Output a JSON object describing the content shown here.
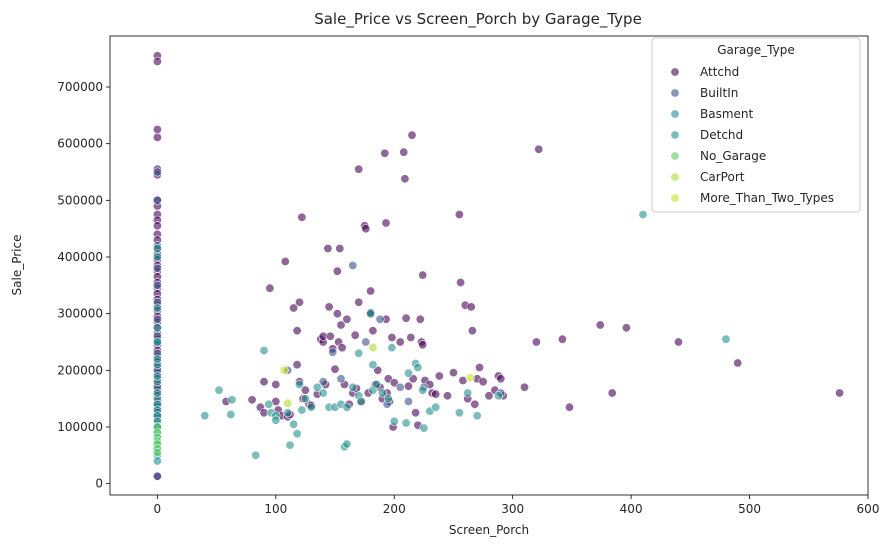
{
  "chart_data": {
    "type": "scatter",
    "title": "Sale_Price vs Screen_Porch by Garage_Type",
    "xlabel": "Screen_Porch",
    "ylabel": "Sale_Price",
    "xlim": [
      -40,
      600
    ],
    "ylim": [
      -20000,
      790000
    ],
    "xticks": [
      0,
      100,
      200,
      300,
      400,
      500,
      600
    ],
    "yticks": [
      0,
      100000,
      200000,
      300000,
      400000,
      500000,
      600000,
      700000
    ],
    "xtick_labels": [
      "0",
      "100",
      "200",
      "300",
      "400",
      "500",
      "600"
    ],
    "ytick_labels": [
      "0",
      "100000",
      "200000",
      "300000",
      "400000",
      "500000",
      "600000",
      "700000"
    ],
    "grid": false,
    "legend": {
      "title": "Garage_Type",
      "placement": "top-right"
    },
    "series": [
      {
        "name": "Attchd",
        "color": "#440154",
        "points": [
          [
            0,
            755000
          ],
          [
            0,
            745000
          ],
          [
            0,
            625000
          ],
          [
            0,
            611000
          ],
          [
            0,
            555000
          ],
          [
            0,
            545000
          ],
          [
            0,
            500000
          ],
          [
            0,
            490000
          ],
          [
            0,
            475000
          ],
          [
            0,
            465000
          ],
          [
            0,
            455000
          ],
          [
            0,
            440000
          ],
          [
            0,
            430000
          ],
          [
            0,
            415000
          ],
          [
            0,
            405000
          ],
          [
            0,
            395000
          ],
          [
            0,
            385000
          ],
          [
            0,
            375000
          ],
          [
            0,
            365000
          ],
          [
            0,
            355000
          ],
          [
            0,
            345000
          ],
          [
            0,
            335000
          ],
          [
            0,
            325000
          ],
          [
            0,
            315000
          ],
          [
            0,
            305000
          ],
          [
            0,
            295000
          ],
          [
            0,
            285000
          ],
          [
            0,
            275000
          ],
          [
            0,
            265000
          ],
          [
            0,
            255000
          ],
          [
            0,
            245000
          ],
          [
            0,
            235000
          ],
          [
            0,
            225000
          ],
          [
            0,
            215000
          ],
          [
            0,
            205000
          ],
          [
            0,
            195000
          ],
          [
            0,
            185000
          ],
          [
            0,
            175000
          ],
          [
            0,
            165000
          ],
          [
            0,
            155000
          ],
          [
            0,
            145000
          ],
          [
            0,
            135000
          ],
          [
            0,
            125000
          ],
          [
            0,
            115000
          ],
          [
            0,
            13000
          ],
          [
            58,
            145000
          ],
          [
            80,
            148000
          ],
          [
            87,
            135000
          ],
          [
            90,
            180000
          ],
          [
            90,
            125000
          ],
          [
            95,
            345000
          ],
          [
            100,
            175000
          ],
          [
            100,
            145000
          ],
          [
            102,
            130000
          ],
          [
            105,
            120000
          ],
          [
            108,
            392000
          ],
          [
            110,
            118000
          ],
          [
            112,
            122000
          ],
          [
            115,
            310000
          ],
          [
            118,
            270000
          ],
          [
            118,
            210000
          ],
          [
            120,
            320000
          ],
          [
            120,
            180000
          ],
          [
            122,
            470000
          ],
          [
            123,
            150000
          ],
          [
            125,
            165000
          ],
          [
            128,
            140000
          ],
          [
            130,
            138000
          ],
          [
            135,
            158000
          ],
          [
            138,
            255000
          ],
          [
            140,
            250000
          ],
          [
            140,
            260000
          ],
          [
            142,
            175000
          ],
          [
            144,
            415000
          ],
          [
            145,
            312000
          ],
          [
            146,
            260000
          ],
          [
            148,
            238000
          ],
          [
            150,
            202000
          ],
          [
            152,
            375000
          ],
          [
            152,
            300000
          ],
          [
            153,
            250000
          ],
          [
            154,
            415000
          ],
          [
            155,
            280000
          ],
          [
            156,
            240000
          ],
          [
            158,
            175000
          ],
          [
            160,
            290000
          ],
          [
            162,
            140000
          ],
          [
            165,
            160000
          ],
          [
            167,
            262000
          ],
          [
            168,
            168000
          ],
          [
            170,
            555000
          ],
          [
            170,
            320000
          ],
          [
            172,
            145000
          ],
          [
            175,
            455000
          ],
          [
            176,
            450000
          ],
          [
            178,
            160000
          ],
          [
            180,
            340000
          ],
          [
            180,
            300000
          ],
          [
            182,
            270000
          ],
          [
            184,
            175000
          ],
          [
            186,
            200000
          ],
          [
            188,
            170000
          ],
          [
            190,
            150000
          ],
          [
            192,
            583000
          ],
          [
            193,
            460000
          ],
          [
            193,
            290000
          ],
          [
            194,
            160000
          ],
          [
            195,
            185000
          ],
          [
            196,
            145000
          ],
          [
            198,
            258000
          ],
          [
            199,
            100000
          ],
          [
            200,
            178000
          ],
          [
            205,
            250000
          ],
          [
            208,
            585000
          ],
          [
            209,
            538000
          ],
          [
            210,
            292000
          ],
          [
            212,
            172000
          ],
          [
            214,
            258000
          ],
          [
            215,
            615000
          ],
          [
            216,
            185000
          ],
          [
            218,
            125000
          ],
          [
            220,
            103000
          ],
          [
            222,
            290000
          ],
          [
            223,
            250000
          ],
          [
            224,
            368000
          ],
          [
            224,
            245000
          ],
          [
            226,
            182000
          ],
          [
            230,
            175000
          ],
          [
            232,
            160000
          ],
          [
            235,
            158000
          ],
          [
            238,
            190000
          ],
          [
            245,
            155000
          ],
          [
            250,
            196000
          ],
          [
            255,
            475000
          ],
          [
            256,
            355000
          ],
          [
            258,
            182000
          ],
          [
            260,
            315000
          ],
          [
            262,
            150000
          ],
          [
            265,
            312000
          ],
          [
            266,
            270000
          ],
          [
            268,
            140000
          ],
          [
            270,
            185000
          ],
          [
            272,
            205000
          ],
          [
            275,
            180000
          ],
          [
            280,
            155000
          ],
          [
            285,
            165000
          ],
          [
            288,
            190000
          ],
          [
            290,
            185000
          ],
          [
            292,
            155000
          ],
          [
            310,
            170000
          ],
          [
            320,
            250000
          ],
          [
            322,
            590000
          ],
          [
            342,
            255000
          ],
          [
            348,
            135000
          ],
          [
            374,
            280000
          ],
          [
            384,
            160000
          ],
          [
            396,
            275000
          ],
          [
            440,
            250000
          ],
          [
            490,
            213000
          ],
          [
            576,
            160000
          ]
        ]
      },
      {
        "name": "BuiltIn",
        "color": "#3b528b",
        "points": [
          [
            0,
            550000
          ],
          [
            0,
            500000
          ],
          [
            0,
            420000
          ],
          [
            0,
            380000
          ],
          [
            0,
            350000
          ],
          [
            0,
            320000
          ],
          [
            0,
            290000
          ],
          [
            0,
            260000
          ],
          [
            0,
            230000
          ],
          [
            0,
            200000
          ],
          [
            0,
            170000
          ],
          [
            0,
            140000
          ],
          [
            0,
            120000
          ],
          [
            0,
            13000
          ],
          [
            110,
            200000
          ],
          [
            140,
            180000
          ],
          [
            148,
            232000
          ],
          [
            155,
            185000
          ],
          [
            165,
            385000
          ],
          [
            176,
            250000
          ],
          [
            180,
            302000
          ],
          [
            188,
            290000
          ],
          [
            194,
            140000
          ],
          [
            205,
            170000
          ],
          [
            212,
            145000
          ],
          [
            225,
            170000
          ],
          [
            290,
            160000
          ]
        ]
      },
      {
        "name": "Basment",
        "color": "#21918c",
        "points": [
          [
            0,
            310000
          ],
          [
            0,
            250000
          ],
          [
            0,
            210000
          ],
          [
            0,
            180000
          ],
          [
            0,
            150000
          ],
          [
            0,
            120000
          ],
          [
            0,
            100000
          ],
          [
            170,
            230000
          ],
          [
            182,
            210000
          ],
          [
            198,
            240000
          ],
          [
            212,
            195000
          ],
          [
            224,
            165000
          ],
          [
            288,
            155000
          ]
        ]
      },
      {
        "name": "Detchd",
        "color": "#21918c",
        "points": [
          [
            0,
            415000
          ],
          [
            0,
            400000
          ],
          [
            0,
            275000
          ],
          [
            0,
            250000
          ],
          [
            0,
            220000
          ],
          [
            0,
            190000
          ],
          [
            0,
            160000
          ],
          [
            0,
            140000
          ],
          [
            0,
            130000
          ],
          [
            0,
            120000
          ],
          [
            0,
            110000
          ],
          [
            0,
            100000
          ],
          [
            0,
            90000
          ],
          [
            0,
            80000
          ],
          [
            0,
            70000
          ],
          [
            0,
            60000
          ],
          [
            0,
            50000
          ],
          [
            0,
            40000
          ],
          [
            40,
            120000
          ],
          [
            52,
            165000
          ],
          [
            62,
            122000
          ],
          [
            63,
            148000
          ],
          [
            83,
            50000
          ],
          [
            90,
            235000
          ],
          [
            94,
            140000
          ],
          [
            96,
            125000
          ],
          [
            100,
            120000
          ],
          [
            100,
            112000
          ],
          [
            110,
            125000
          ],
          [
            112,
            68000
          ],
          [
            115,
            105000
          ],
          [
            118,
            88000
          ],
          [
            120,
            175000
          ],
          [
            122,
            130000
          ],
          [
            125,
            150000
          ],
          [
            130,
            135000
          ],
          [
            135,
            170000
          ],
          [
            140,
            160000
          ],
          [
            145,
            135000
          ],
          [
            150,
            135000
          ],
          [
            155,
            140000
          ],
          [
            158,
            65000
          ],
          [
            160,
            70000
          ],
          [
            160,
            135000
          ],
          [
            165,
            170000
          ],
          [
            170,
            155000
          ],
          [
            172,
            145000
          ],
          [
            180,
            300000
          ],
          [
            182,
            165000
          ],
          [
            185,
            175000
          ],
          [
            190,
            160000
          ],
          [
            195,
            150000
          ],
          [
            200,
            110000
          ],
          [
            210,
            107000
          ],
          [
            218,
            212000
          ],
          [
            220,
            205000
          ],
          [
            225,
            98000
          ],
          [
            230,
            128000
          ],
          [
            235,
            135000
          ],
          [
            255,
            125000
          ],
          [
            262,
            160000
          ],
          [
            270,
            120000
          ],
          [
            410,
            475000
          ],
          [
            480,
            255000
          ]
        ]
      },
      {
        "name": "No_Garage",
        "color": "#5ec962",
        "points": [
          [
            0,
            100000
          ],
          [
            0,
            90000
          ],
          [
            0,
            82000
          ],
          [
            0,
            75000
          ],
          [
            0,
            70000
          ],
          [
            0,
            62000
          ],
          [
            0,
            55000
          ]
        ]
      },
      {
        "name": "CarPort",
        "color": "#addc30",
        "points": [
          [
            110,
            142000
          ],
          [
            182,
            240000
          ]
        ]
      },
      {
        "name": "More_Than_Two_Types",
        "color": "#c8e020",
        "points": [
          [
            107,
            200000
          ],
          [
            264,
            187000
          ]
        ]
      }
    ]
  }
}
